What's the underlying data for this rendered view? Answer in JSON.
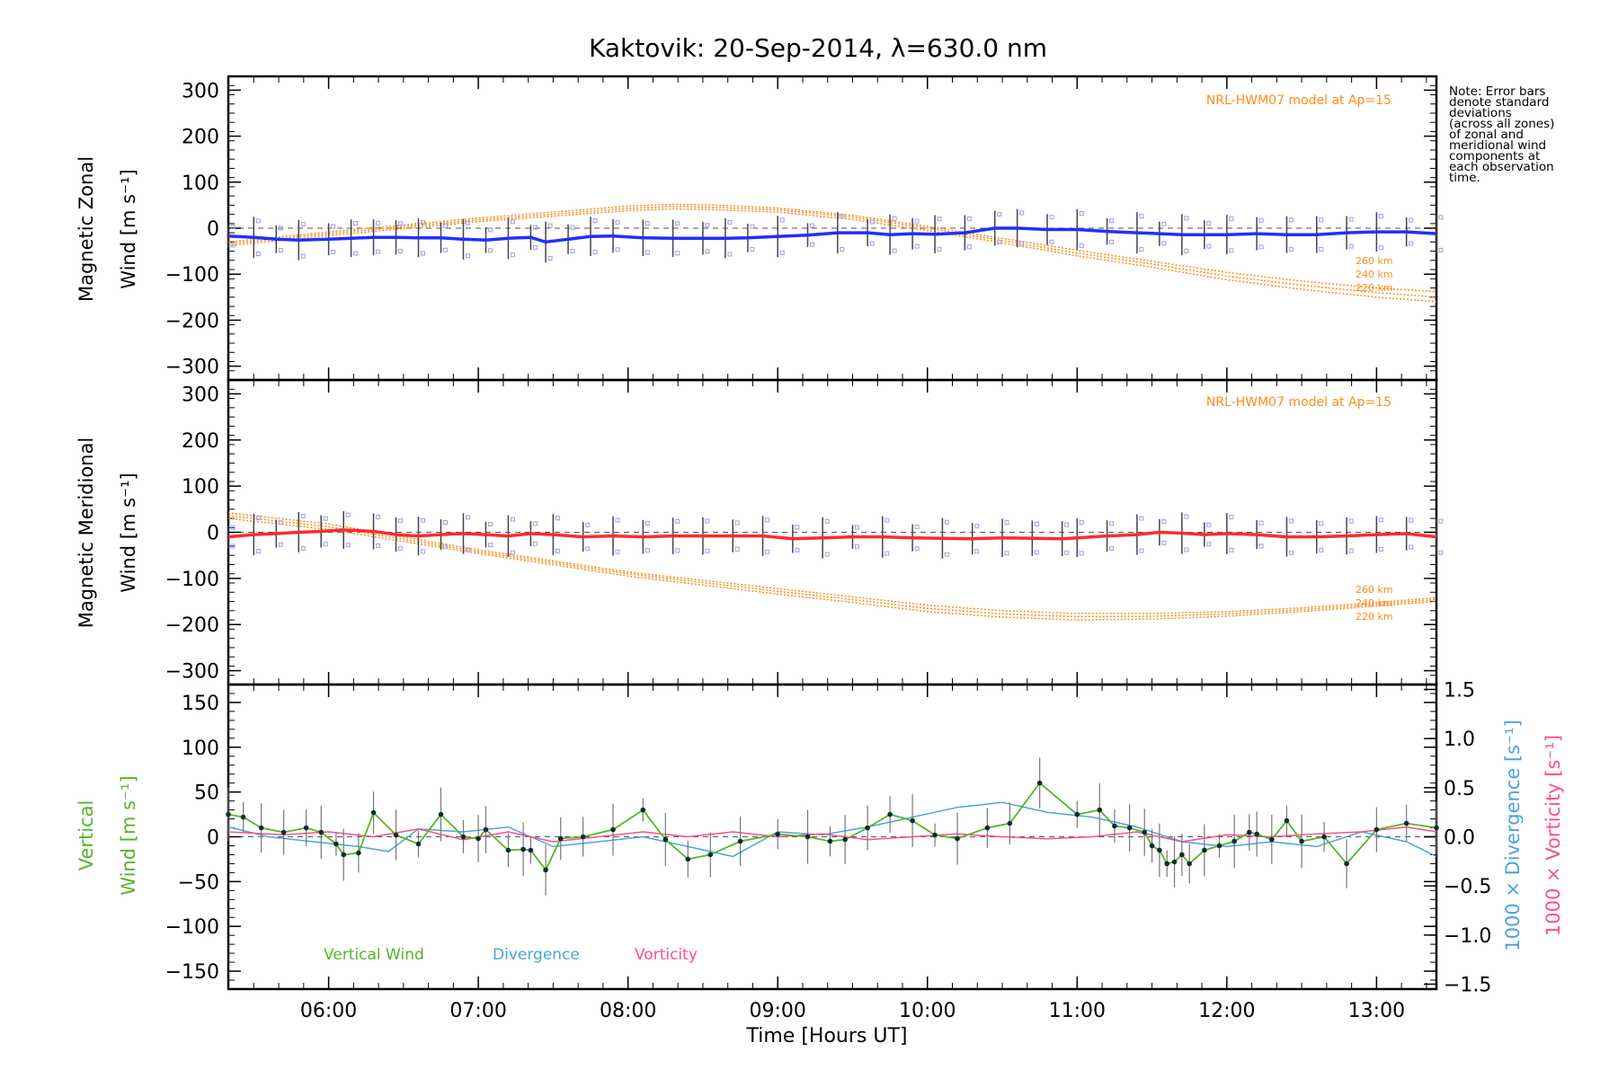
{
  "chart_data": {
    "type": "line",
    "title": "Kaktovik: 20-Sep-2014, λ=630.0 nm",
    "xlabel": "Time [Hours UT]",
    "x_ticks": [
      "06:00",
      "07:00",
      "08:00",
      "09:00",
      "10:00",
      "11:00",
      "12:00",
      "13:00"
    ],
    "xlim": [
      5.33,
      13.4
    ],
    "note": [
      "Note: Error bars",
      "denote standard",
      "deviations",
      "(across all zones)",
      "of zonal and",
      "meridional wind",
      "components at",
      "each observation",
      "time."
    ],
    "colors": {
      "zonal": "#1f2fff",
      "meridional": "#ff2a2a",
      "model": "#ff8c1a",
      "vertical": "#55b52b",
      "divergence": "#4ea3d8",
      "vorticity": "#ff4d8a",
      "zone_markers": "#9e9ee8",
      "errorbar": "#444444"
    },
    "panels": [
      {
        "ylabel_top": "Magnetic Zonal",
        "ylabel_bottom": "Wind [m s⁻¹]",
        "ylim": [
          -330,
          330
        ],
        "y_ticks": [
          300,
          200,
          100,
          0,
          -100,
          -200,
          -300
        ],
        "model_label": "NRL-HWM07 model at Ap=15",
        "model_altitude_labels": [
          "260 km",
          "240 km",
          "220 km"
        ],
        "series": [
          {
            "x": [
              5.33,
              5.5,
              5.65,
              5.8,
              6.0,
              6.15,
              6.3,
              6.45,
              6.6,
              6.75,
              6.9,
              7.05,
              7.2,
              7.35,
              7.45,
              7.6,
              7.75,
              7.9,
              8.1,
              8.3,
              8.5,
              8.65,
              8.8,
              9.0,
              9.2,
              9.4,
              9.6,
              9.75,
              9.9,
              10.05,
              10.25,
              10.45,
              10.6,
              10.8,
              11.0,
              11.2,
              11.4,
              11.55,
              11.7,
              11.85,
              12.0,
              12.2,
              12.4,
              12.6,
              12.8,
              13.0,
              13.2,
              13.4
            ],
            "values": [
              -17,
              -20,
              -24,
              -26,
              -24,
              -22,
              -20,
              -20,
              -21,
              -21,
              -24,
              -26,
              -22,
              -20,
              -30,
              -24,
              -18,
              -17,
              -21,
              -22,
              -22,
              -22,
              -21,
              -18,
              -15,
              -10,
              -10,
              -14,
              -12,
              -13,
              -10,
              0,
              0,
              -3,
              -3,
              -7,
              -10,
              -12,
              -14,
              -14,
              -14,
              -12,
              -14,
              -14,
              -10,
              -8,
              -8,
              -12
            ]
          },
          {
            "x": [
              5.33,
              6.0,
              7.0,
              8.0,
              8.3,
              8.6,
              9.0,
              9.5,
              10.0,
              10.5,
              11.0,
              11.5,
              12.0,
              12.5,
              13.0,
              13.4
            ],
            "values": [
              -30,
              -8,
              22,
              48,
              52,
              50,
              44,
              28,
              4,
              -22,
              -48,
              -72,
              -96,
              -115,
              -130,
              -138
            ]
          },
          {
            "x": [
              5.33,
              6.0,
              7.0,
              8.0,
              8.3,
              8.6,
              9.0,
              9.5,
              10.0,
              10.5,
              11.0,
              11.5,
              12.0,
              12.5,
              13.0,
              13.4
            ],
            "values": [
              -34,
              -12,
              18,
              43,
              47,
              45,
              40,
              24,
              0,
              -27,
              -54,
              -78,
              -104,
              -124,
              -140,
              -150
            ]
          },
          {
            "x": [
              5.33,
              6.0,
              7.0,
              8.0,
              8.3,
              8.6,
              9.0,
              9.5,
              10.0,
              10.5,
              11.0,
              11.5,
              12.0,
              12.5,
              13.0,
              13.4
            ],
            "values": [
              -38,
              -16,
              14,
              38,
              42,
              40,
              35,
              19,
              -5,
              -32,
              -60,
              -85,
              -112,
              -133,
              -150,
              -160
            ]
          }
        ]
      },
      {
        "ylabel_top": "Magnetic Meridional",
        "ylabel_bottom": "Wind [m s⁻¹]",
        "ylim": [
          -330,
          330
        ],
        "y_ticks": [
          300,
          200,
          100,
          0,
          -100,
          -200,
          -300
        ],
        "model_label": "NRL-HWM07 model at Ap=15",
        "model_altitude_labels": [
          "260 km",
          "240 km",
          "220 km"
        ],
        "series": [
          {
            "x": [
              5.33,
              5.5,
              5.65,
              5.8,
              5.95,
              6.1,
              6.3,
              6.45,
              6.6,
              6.75,
              6.9,
              7.05,
              7.2,
              7.35,
              7.5,
              7.7,
              7.9,
              8.1,
              8.3,
              8.5,
              8.7,
              8.9,
              9.1,
              9.3,
              9.5,
              9.7,
              9.9,
              10.1,
              10.3,
              10.5,
              10.7,
              10.9,
              11.0,
              11.2,
              11.4,
              11.55,
              11.7,
              11.85,
              12.0,
              12.2,
              12.4,
              12.6,
              12.8,
              13.0,
              13.2,
              13.4
            ],
            "values": [
              -10,
              -5,
              -3,
              0,
              2,
              5,
              2,
              -5,
              -8,
              -5,
              -3,
              -5,
              -8,
              -3,
              -5,
              -10,
              -8,
              -10,
              -8,
              -8,
              -8,
              -8,
              -14,
              -12,
              -10,
              -10,
              -12,
              -13,
              -14,
              -12,
              -13,
              -14,
              -12,
              -8,
              -5,
              0,
              -2,
              -5,
              -3,
              -5,
              -10,
              -10,
              -8,
              -5,
              -3,
              -10
            ]
          },
          {
            "x": [
              5.33,
              6.0,
              7.0,
              8.0,
              9.0,
              9.5,
              10.0,
              10.5,
              11.0,
              11.5,
              12.0,
              12.5,
              13.0,
              13.4
            ],
            "values": [
              42,
              18,
              -38,
              -86,
              -122,
              -140,
              -158,
              -170,
              -176,
              -176,
              -172,
              -164,
              -152,
              -142
            ]
          },
          {
            "x": [
              5.33,
              6.0,
              7.0,
              8.0,
              9.0,
              9.5,
              10.0,
              10.5,
              11.0,
              11.5,
              12.0,
              12.5,
              13.0,
              13.4
            ],
            "values": [
              36,
              12,
              -42,
              -90,
              -128,
              -146,
              -165,
              -177,
              -183,
              -182,
              -177,
              -168,
              -156,
              -146
            ]
          },
          {
            "x": [
              5.33,
              6.0,
              7.0,
              8.0,
              9.0,
              9.5,
              10.0,
              10.5,
              11.0,
              11.5,
              12.0,
              12.5,
              13.0,
              13.4
            ],
            "values": [
              30,
              6,
              -46,
              -95,
              -134,
              -152,
              -172,
              -184,
              -190,
              -188,
              -182,
              -172,
              -160,
              -150
            ]
          }
        ]
      },
      {
        "ylabel_top": "Vertical",
        "ylabel_bottom": "Wind [m s⁻¹]",
        "ylim": [
          -170,
          170
        ],
        "y_ticks": [
          150,
          100,
          50,
          0,
          -50,
          -100,
          -150
        ],
        "y2label_top": "1000 × Divergence [s⁻¹]",
        "y2label_bottom": "1000 × Vorticity [s⁻¹]",
        "y2lim": [
          -1.55,
          1.55
        ],
        "y2_ticks": [
          "1.5",
          "1.0",
          "0.5",
          "0.0",
          "−0.5",
          "−1.0",
          "−1.5"
        ],
        "legend": [
          "Vertical Wind",
          "Divergence",
          "Vorticity"
        ],
        "series": [
          {
            "name": "Vertical Wind",
            "x": [
              5.33,
              5.43,
              5.55,
              5.7,
              5.85,
              5.95,
              6.05,
              6.1,
              6.2,
              6.3,
              6.45,
              6.6,
              6.75,
              6.9,
              7.0,
              7.05,
              7.2,
              7.3,
              7.35,
              7.45,
              7.55,
              7.7,
              7.9,
              8.1,
              8.25,
              8.4,
              8.55,
              8.75,
              9.0,
              9.2,
              9.35,
              9.45,
              9.6,
              9.75,
              9.9,
              10.05,
              10.2,
              10.4,
              10.55,
              10.75,
              11.0,
              11.15,
              11.25,
              11.35,
              11.45,
              11.5,
              11.55,
              11.6,
              11.65,
              11.7,
              11.75,
              11.85,
              11.95,
              12.05,
              12.15,
              12.2,
              12.3,
              12.4,
              12.5,
              12.65,
              12.8,
              13.0,
              13.2,
              13.4
            ],
            "values": [
              25,
              22,
              10,
              5,
              10,
              5,
              -8,
              -20,
              -18,
              27,
              2,
              -8,
              25,
              0,
              -2,
              8,
              -15,
              -14,
              -15,
              -37,
              -2,
              0,
              8,
              30,
              -3,
              -25,
              -20,
              -5,
              3,
              0,
              -5,
              -3,
              10,
              25,
              18,
              2,
              -2,
              10,
              15,
              60,
              25,
              30,
              12,
              10,
              5,
              -10,
              -15,
              -30,
              -28,
              -20,
              -30,
              -15,
              -10,
              -5,
              5,
              3,
              -3,
              18,
              -5,
              0,
              -30,
              8,
              15,
              10
            ]
          },
          {
            "name": "Divergence",
            "x": [
              5.33,
              5.6,
              5.9,
              6.2,
              6.4,
              6.6,
              6.9,
              7.2,
              7.5,
              7.8,
              8.1,
              8.4,
              8.7,
              9.0,
              9.3,
              9.6,
              9.9,
              10.2,
              10.5,
              10.8,
              11.1,
              11.4,
              11.7,
              12.0,
              12.3,
              12.6,
              12.9,
              13.2,
              13.4
            ],
            "values": [
              0.1,
              0.0,
              -0.05,
              -0.1,
              -0.15,
              0.08,
              0.05,
              0.1,
              -0.1,
              -0.05,
              0.0,
              -0.1,
              -0.2,
              0.05,
              0.02,
              0.1,
              0.2,
              0.3,
              0.35,
              0.25,
              0.2,
              0.1,
              -0.05,
              -0.1,
              -0.05,
              -0.1,
              0.05,
              -0.05,
              -0.2
            ]
          },
          {
            "name": "Vorticity",
            "x": [
              5.33,
              5.7,
              6.0,
              6.3,
              6.6,
              6.9,
              7.2,
              7.5,
              7.8,
              8.1,
              8.4,
              8.7,
              9.0,
              9.3,
              9.6,
              9.9,
              10.2,
              10.5,
              10.8,
              11.1,
              11.4,
              11.7,
              12.0,
              12.3,
              12.6,
              12.9,
              13.2,
              13.4
            ],
            "values": [
              0.05,
              0.02,
              0.05,
              0.0,
              0.08,
              -0.03,
              0.05,
              -0.05,
              0.0,
              0.05,
              0.0,
              0.05,
              0.0,
              0.03,
              -0.03,
              0.0,
              0.03,
              0.0,
              -0.02,
              0.0,
              0.05,
              -0.05,
              0.02,
              0.0,
              0.03,
              0.05,
              0.1,
              0.05
            ]
          }
        ]
      }
    ]
  }
}
